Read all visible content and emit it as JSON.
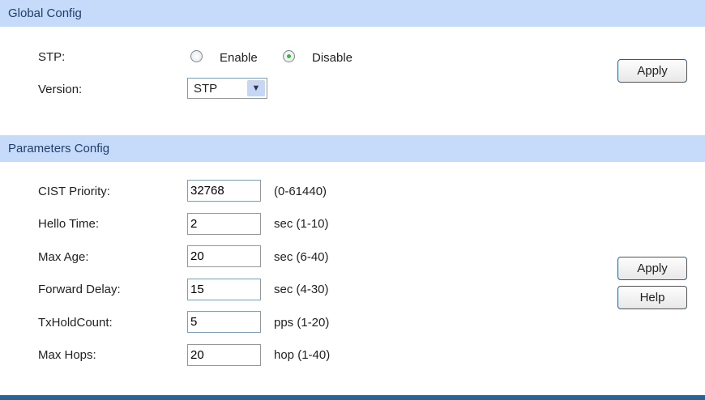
{
  "global": {
    "title": "Global Config",
    "stp_label": "STP:",
    "enable": "Enable",
    "disable": "Disable",
    "stp_selected": "Disable",
    "version_label": "Version:",
    "version_value": "STP",
    "apply": "Apply"
  },
  "params": {
    "title": "Parameters Config",
    "rows": [
      {
        "label": "CIST Priority:",
        "value": "32768",
        "unit": "(0-61440)"
      },
      {
        "label": "Hello Time:",
        "value": "2",
        "unit": "sec (1-10)"
      },
      {
        "label": "Max Age:",
        "value": "20",
        "unit": "sec (6-40)"
      },
      {
        "label": "Forward Delay:",
        "value": "15",
        "unit": "sec (4-30)"
      },
      {
        "label": "TxHoldCount:",
        "value": "5",
        "unit": "pps (1-20)"
      },
      {
        "label": "Max Hops:",
        "value": "20",
        "unit": "hop (1-40)"
      }
    ],
    "apply": "Apply",
    "help": "Help"
  },
  "colors": {
    "header_bg": "#c6dbfa",
    "header_text": "#1f3f6e",
    "bottom_bar": "#2c628f"
  }
}
